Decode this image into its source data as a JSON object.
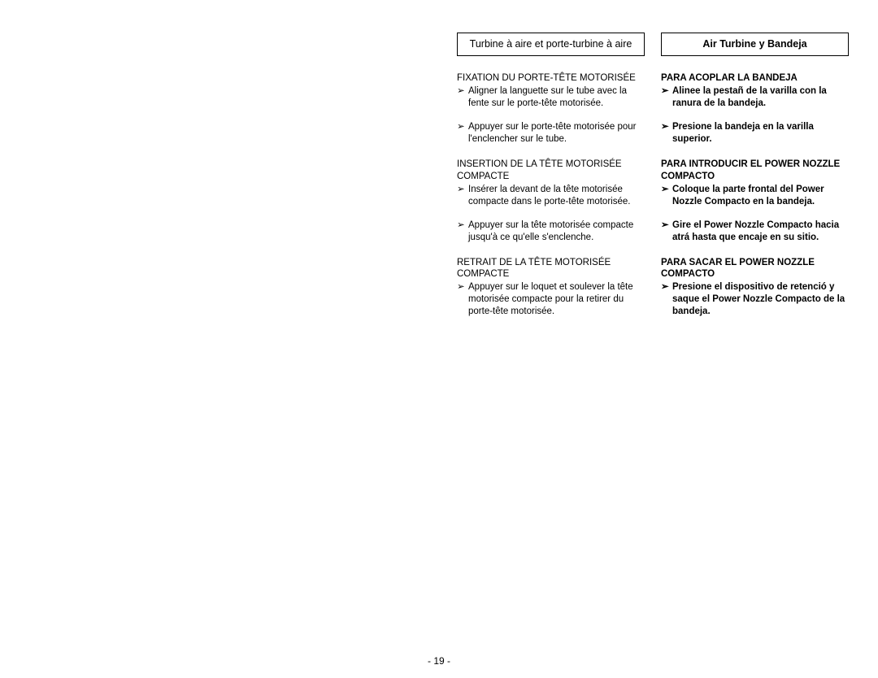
{
  "page_number": "- 19 -",
  "left_column": {
    "header": "Turbine à aire et porte-turbine à aire",
    "sections": [
      {
        "title": "FIXATION DU PORTE-TÊTE MOTORISÉE",
        "items": [
          "Aligner la languette sur le tube avec la fente sur le porte-tête motorisée.",
          "Appuyer sur le porte-tête motorisée pour l'enclencher sur le tube."
        ]
      },
      {
        "title": "INSERTION DE LA TÊTE MOTORISÉE COMPACTE",
        "items": [
          "Insérer la devant de la tête motorisée compacte dans le porte-tête motorisée.",
          "Appuyer sur la tête motorisée compacte jusqu'à ce qu'elle s'enclenche."
        ]
      },
      {
        "title": "RETRAIT DE LA TÊTE MOTORISÉE COMPACTE",
        "items": [
          "Appuyer sur le loquet et soulever la tête motorisée compacte pour la retirer du porte-tête motorisée."
        ]
      }
    ]
  },
  "right_column": {
    "header": "Air Turbine y Bandeja",
    "sections": [
      {
        "title": "PARA ACOPLAR LA BANDEJA",
        "items": [
          "Alinee la pestañ de la varilla con la ranura de la bandeja.",
          "Presione la bandeja en la varilla superior."
        ]
      },
      {
        "title": "PARA INTRODUCIR EL POWER NOZZLE COMPACTO",
        "items": [
          "Coloque la parte frontal del Power Nozzle Compacto en la bandeja.",
          "Gire el Power Nozzle Compacto hacia atrá hasta que encaje en su sitio."
        ]
      },
      {
        "title": "PARA SACAR EL POWER NOZZLE COMPACTO",
        "items": [
          "Presione el dispositivo de retenció y saque el Power Nozzle Compacto de la bandeja."
        ]
      }
    ]
  },
  "bullet_glyph": "➢"
}
